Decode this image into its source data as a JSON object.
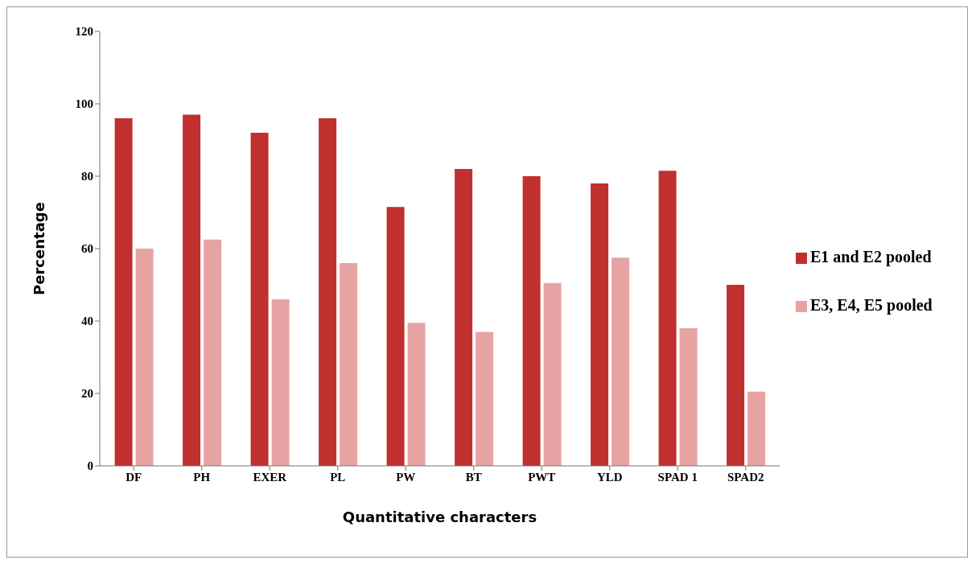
{
  "chart_data": {
    "type": "bar",
    "xlabel": "Quantitative characters",
    "ylabel": "Percentage",
    "categories": [
      "DF",
      "PH",
      "EXER",
      "PL",
      "PW",
      "BT",
      "PWT",
      "YLD",
      "SPAD 1",
      "SPAD2"
    ],
    "series": [
      {
        "name": "E1 and E2 pooled",
        "color": "#c0302e",
        "values": [
          96,
          97,
          92,
          96,
          71.5,
          82,
          80,
          78,
          81.5,
          50
        ]
      },
      {
        "name": "E3, E4, E5 pooled",
        "color": "#e6a3a3",
        "values": [
          60,
          62.5,
          46,
          56,
          39.5,
          37,
          50.5,
          57.5,
          38,
          20.5
        ]
      }
    ],
    "ylim": [
      0,
      120
    ],
    "yticks": [
      0,
      20,
      40,
      60,
      80,
      100,
      120
    ],
    "grid": false,
    "legend": "right"
  }
}
